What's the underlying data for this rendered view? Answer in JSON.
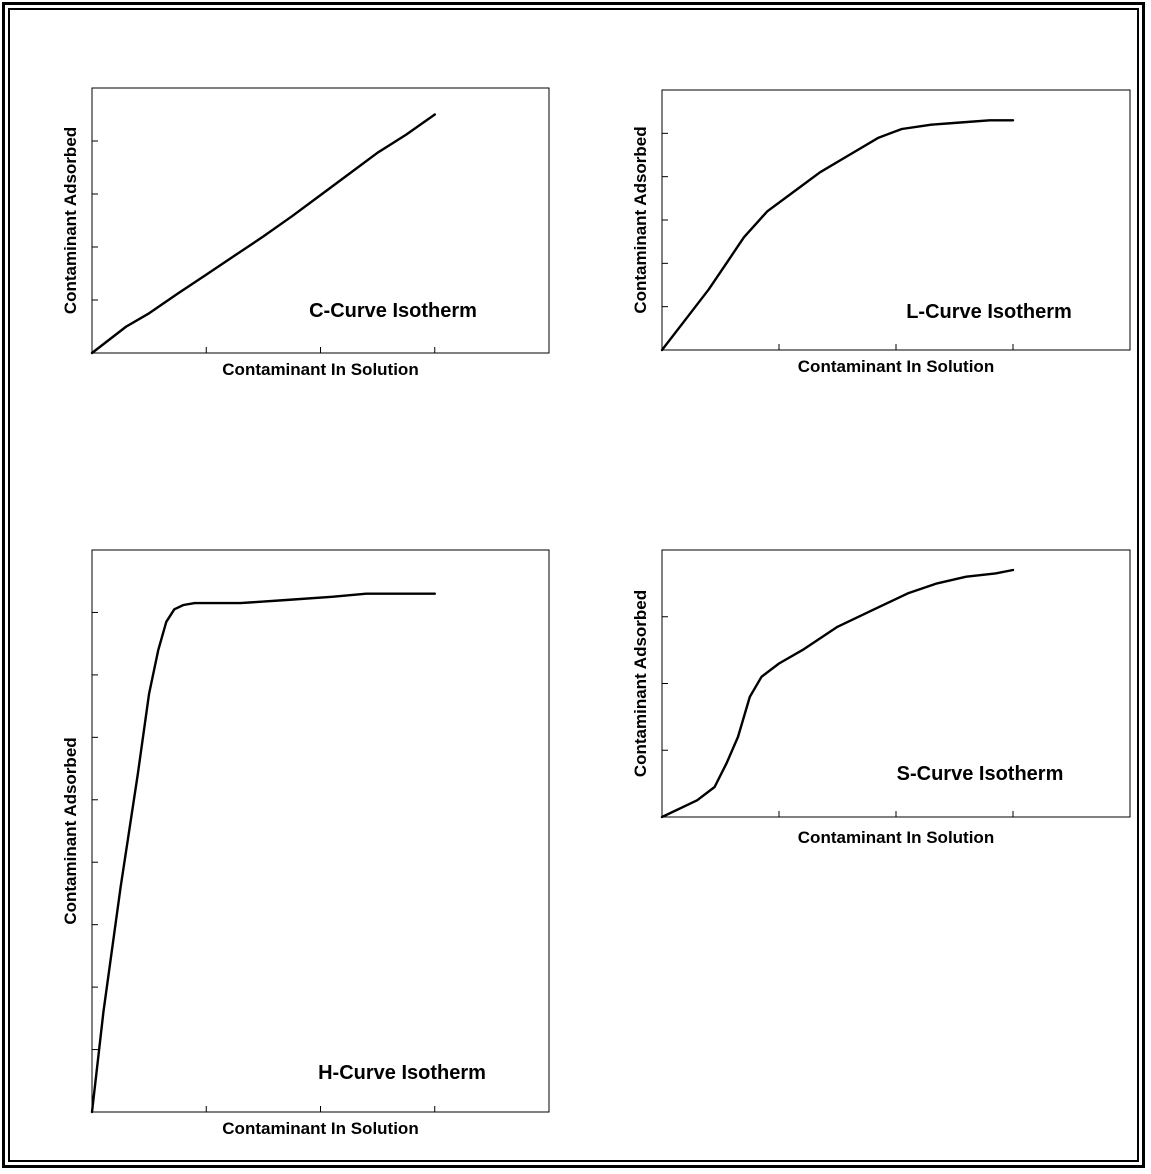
{
  "chart_data": [
    {
      "id": "c",
      "type": "line",
      "label": "C-Curve Isotherm",
      "xlabel": "Contaminant In Solution",
      "ylabel": "Contaminant Adsorbed",
      "xlim": [
        0,
        4
      ],
      "ylim": [
        0,
        5
      ],
      "x_ticks": [
        1,
        2,
        3
      ],
      "y_ticks": [
        1,
        2,
        3,
        4
      ],
      "x": [
        0,
        0.3,
        0.5,
        0.75,
        1.0,
        1.25,
        1.5,
        1.75,
        2.0,
        2.25,
        2.5,
        2.75,
        3.0
      ],
      "y": [
        0,
        0.5,
        0.75,
        1.12,
        1.48,
        1.84,
        2.2,
        2.58,
        2.98,
        3.38,
        3.78,
        4.12,
        4.5
      ]
    },
    {
      "id": "l",
      "type": "line",
      "label": "L-Curve Isotherm",
      "xlabel": "Contaminant In Solution",
      "ylabel": "Contaminant Adsorbed",
      "xlim": [
        0,
        4
      ],
      "ylim": [
        0,
        6
      ],
      "x_ticks": [
        1,
        2,
        3
      ],
      "y_ticks": [
        1,
        2,
        3,
        4,
        5
      ],
      "x": [
        0,
        0.2,
        0.4,
        0.55,
        0.7,
        0.9,
        1.1,
        1.35,
        1.6,
        1.85,
        2.05,
        2.3,
        2.55,
        2.8,
        3.0
      ],
      "y": [
        0,
        0.7,
        1.4,
        2.0,
        2.6,
        3.2,
        3.6,
        4.1,
        4.5,
        4.9,
        5.1,
        5.2,
        5.25,
        5.3,
        5.3
      ]
    },
    {
      "id": "h",
      "type": "line",
      "label": "H-Curve Isotherm",
      "xlabel": "Contaminant In Solution",
      "ylabel": "Contaminant Adsorbed",
      "xlim": [
        0,
        4
      ],
      "ylim": [
        0,
        9
      ],
      "x_ticks": [
        1,
        2,
        3
      ],
      "y_ticks": [
        1,
        2,
        3,
        4,
        5,
        6,
        7,
        8
      ],
      "x": [
        0,
        0.1,
        0.25,
        0.4,
        0.5,
        0.58,
        0.65,
        0.72,
        0.8,
        0.9,
        1.05,
        1.3,
        1.7,
        2.1,
        2.4,
        2.7,
        3.0
      ],
      "y": [
        0,
        1.6,
        3.6,
        5.4,
        6.7,
        7.4,
        7.85,
        8.05,
        8.12,
        8.15,
        8.15,
        8.15,
        8.2,
        8.25,
        8.3,
        8.3,
        8.3
      ]
    },
    {
      "id": "s",
      "type": "line",
      "label": "S-Curve Isotherm",
      "xlabel": "Contaminant In Solution",
      "ylabel": "Contaminant Adsorbed",
      "xlim": [
        0,
        4
      ],
      "ylim": [
        0,
        4
      ],
      "x_ticks": [
        1,
        2,
        3
      ],
      "y_ticks": [
        1,
        2,
        3
      ],
      "x": [
        0,
        0.3,
        0.45,
        0.55,
        0.65,
        0.75,
        0.85,
        1.0,
        1.2,
        1.5,
        1.8,
        2.1,
        2.35,
        2.6,
        2.85,
        3.0
      ],
      "y": [
        0,
        0.25,
        0.45,
        0.8,
        1.2,
        1.8,
        2.1,
        2.3,
        2.5,
        2.85,
        3.1,
        3.35,
        3.5,
        3.6,
        3.65,
        3.7
      ]
    }
  ]
}
